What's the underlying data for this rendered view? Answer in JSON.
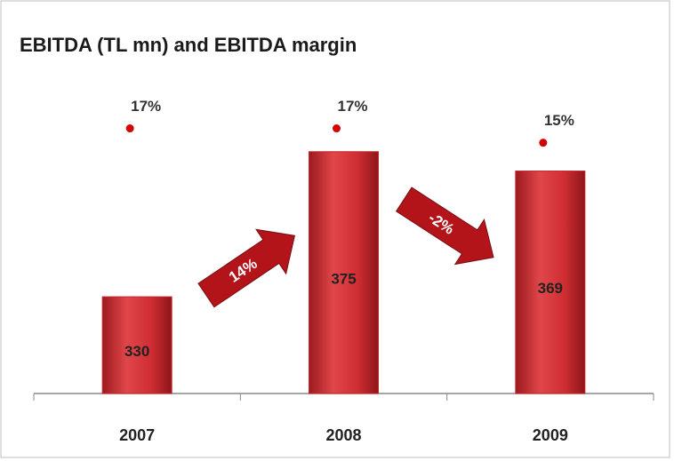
{
  "chart_data": {
    "type": "bar",
    "title": "EBITDA (TL mn) and EBITDA margin",
    "categories": [
      "2007",
      "2008",
      "2009"
    ],
    "ylim": [
      300,
      400
    ],
    "y2lim": [
      -20,
      25
    ],
    "series": [
      {
        "name": "EBITDA (TL mn)",
        "color": "#c8252b",
        "values": [
          330,
          375,
          369
        ]
      },
      {
        "name": "EBITDA margin",
        "color": "#d40000",
        "axis": "y2",
        "values": [
          17,
          17,
          15
        ],
        "value_labels": [
          "17%",
          "17%",
          "15%"
        ]
      }
    ],
    "annotations": [
      "14%",
      "-2%"
    ]
  }
}
